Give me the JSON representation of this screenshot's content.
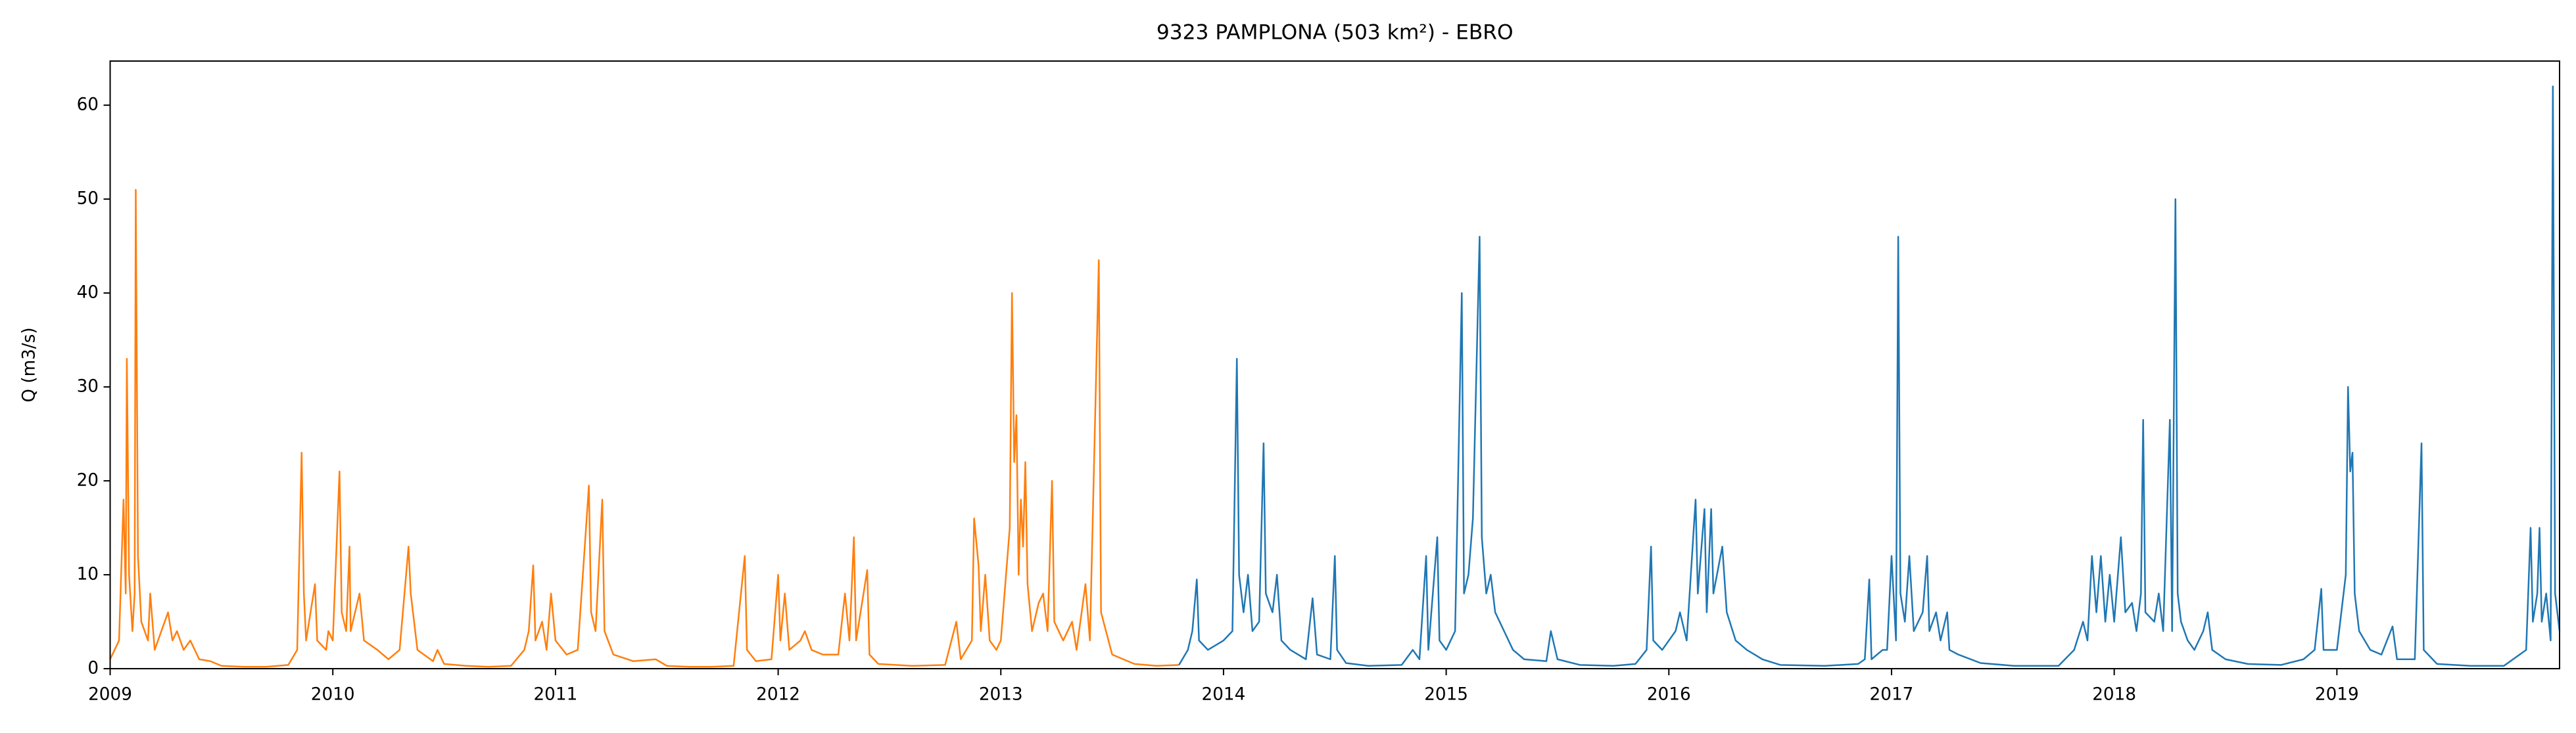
{
  "chart_data": {
    "type": "line",
    "title": "9323 PAMPLONA (503 km²) - EBRO",
    "y_label": "Q (m3/s)",
    "xlim": [
      2009,
      2020
    ],
    "xticks": [
      2009,
      2010,
      2011,
      2012,
      2013,
      2014,
      2015,
      2016,
      2017,
      2018,
      2019
    ],
    "ylim": [
      0,
      64.7
    ],
    "yticks": [
      0,
      10,
      20,
      30,
      40,
      50,
      60
    ],
    "grid": false,
    "series": [
      {
        "color": "#ff7f0e",
        "x": [
          2009.0,
          2009.04,
          2009.06,
          2009.07,
          2009.075,
          2009.085,
          2009.1,
          2009.11,
          2009.115,
          2009.125,
          2009.14,
          2009.17,
          2009.18,
          2009.2,
          2009.26,
          2009.28,
          2009.3,
          2009.33,
          2009.36,
          2009.4,
          2009.45,
          2009.5,
          2009.6,
          2009.7,
          2009.8,
          2009.84,
          2009.86,
          2009.87,
          2009.88,
          2009.92,
          2009.93,
          2009.97,
          2009.98,
          2010.0,
          2010.03,
          2010.04,
          2010.06,
          2010.075,
          2010.08,
          2010.1,
          2010.12,
          2010.14,
          2010.2,
          2010.25,
          2010.3,
          2010.34,
          2010.35,
          2010.38,
          2010.45,
          2010.47,
          2010.5,
          2010.6,
          2010.7,
          2010.8,
          2010.86,
          2010.88,
          2010.9,
          2010.91,
          2010.94,
          2010.96,
          2010.98,
          2011.0,
          2011.05,
          2011.1,
          2011.15,
          2011.16,
          2011.18,
          2011.21,
          2011.22,
          2011.26,
          2011.35,
          2011.45,
          2011.5,
          2011.6,
          2011.7,
          2011.8,
          2011.85,
          2011.86,
          2011.9,
          2011.97,
          2012.0,
          2012.01,
          2012.03,
          2012.05,
          2012.1,
          2012.12,
          2012.15,
          2012.2,
          2012.27,
          2012.3,
          2012.32,
          2012.34,
          2012.35,
          2012.4,
          2012.41,
          2012.45,
          2012.6,
          2012.75,
          2012.8,
          2012.82,
          2012.87,
          2012.88,
          2012.9,
          2012.91,
          2012.93,
          2012.95,
          2012.98,
          2013.0,
          2013.04,
          2013.05,
          2013.06,
          2013.07,
          2013.08,
          2013.09,
          2013.1,
          2013.11,
          2013.12,
          2013.14,
          2013.17,
          2013.19,
          2013.21,
          2013.23,
          2013.24,
          2013.28,
          2013.32,
          2013.34,
          2013.38,
          2013.4,
          2013.44,
          2013.45,
          2013.5,
          2013.6,
          2013.7,
          2013.8
        ],
        "values": [
          1,
          3,
          18,
          8,
          33,
          10,
          4,
          8,
          51,
          12,
          5,
          3,
          8,
          2,
          6,
          3,
          4,
          2,
          3,
          1,
          0.8,
          0.3,
          0.2,
          0.2,
          0.4,
          2,
          23,
          8,
          3,
          9,
          3,
          2,
          4,
          3,
          21,
          6,
          4,
          13,
          4,
          6,
          8,
          3,
          2,
          1,
          2,
          13,
          8,
          2,
          0.8,
          2,
          0.5,
          0.3,
          0.2,
          0.3,
          2,
          4,
          11,
          3,
          5,
          2,
          8,
          3,
          1.5,
          2,
          19.5,
          6,
          4,
          18,
          4,
          1.5,
          0.8,
          1,
          0.3,
          0.2,
          0.2,
          0.3,
          12,
          2,
          0.8,
          1,
          10,
          3,
          8,
          2,
          3,
          4,
          2,
          1.5,
          1.5,
          8,
          3,
          14,
          3,
          10.5,
          1.5,
          0.5,
          0.3,
          0.4,
          5,
          1,
          3,
          16,
          11,
          4,
          10,
          3,
          2,
          3,
          15,
          40,
          22,
          27,
          10,
          18,
          13,
          22,
          9,
          4,
          7,
          8,
          4,
          20,
          5,
          3,
          5,
          2,
          9,
          3,
          43.5,
          6,
          1.5,
          0.5,
          0.3,
          0.4
        ]
      },
      {
        "color": "#1f77b4",
        "x": [
          2013.8,
          2013.84,
          2013.86,
          2013.88,
          2013.89,
          2013.93,
          2014.0,
          2014.04,
          2014.06,
          2014.07,
          2014.09,
          2014.11,
          2014.13,
          2014.16,
          2014.18,
          2014.19,
          2014.22,
          2014.24,
          2014.26,
          2014.3,
          2014.37,
          2014.4,
          2014.42,
          2014.48,
          2014.5,
          2014.51,
          2014.55,
          2014.65,
          2014.8,
          2014.85,
          2014.88,
          2014.91,
          2014.92,
          2014.96,
          2014.97,
          2015.0,
          2015.04,
          2015.07,
          2015.08,
          2015.1,
          2015.12,
          2015.15,
          2015.16,
          2015.18,
          2015.2,
          2015.22,
          2015.26,
          2015.3,
          2015.35,
          2015.45,
          2015.47,
          2015.5,
          2015.6,
          2015.75,
          2015.85,
          2015.9,
          2015.92,
          2015.93,
          2015.97,
          2016.03,
          2016.05,
          2016.08,
          2016.12,
          2016.13,
          2016.16,
          2016.17,
          2016.19,
          2016.2,
          2016.24,
          2016.26,
          2016.3,
          2016.35,
          2016.42,
          2016.5,
          2016.7,
          2016.85,
          2016.88,
          2016.9,
          2016.91,
          2016.96,
          2016.98,
          2017.0,
          2017.02,
          2017.03,
          2017.04,
          2017.06,
          2017.08,
          2017.1,
          2017.14,
          2017.16,
          2017.17,
          2017.2,
          2017.22,
          2017.25,
          2017.26,
          2017.3,
          2017.4,
          2017.55,
          2017.75,
          2017.82,
          2017.86,
          2017.88,
          2017.9,
          2017.92,
          2017.94,
          2017.96,
          2017.98,
          2018.0,
          2018.03,
          2018.05,
          2018.08,
          2018.1,
          2018.12,
          2018.13,
          2018.14,
          2018.18,
          2018.2,
          2018.22,
          2018.25,
          2018.26,
          2018.275,
          2018.285,
          2018.3,
          2018.33,
          2018.36,
          2018.4,
          2018.42,
          2018.44,
          2018.5,
          2018.6,
          2018.75,
          2018.85,
          2018.9,
          2018.93,
          2018.94,
          2019.0,
          2019.04,
          2019.05,
          2019.06,
          2019.07,
          2019.08,
          2019.1,
          2019.15,
          2019.2,
          2019.25,
          2019.27,
          2019.35,
          2019.38,
          2019.39,
          2019.45,
          2019.6,
          2019.75,
          2019.85,
          2019.87,
          2019.88,
          2019.9,
          2019.91,
          2019.92,
          2019.94,
          2019.96,
          2019.97,
          2019.98,
          2019.99,
          2020.0
        ],
        "values": [
          0.4,
          2,
          4,
          9.5,
          3,
          2,
          3,
          4,
          33,
          10,
          6,
          10,
          4,
          5,
          24,
          8,
          6,
          10,
          3,
          2,
          1,
          7.5,
          1.5,
          1,
          12,
          2,
          0.6,
          0.3,
          0.4,
          2,
          1,
          12,
          2,
          14,
          3,
          2,
          4,
          40,
          8,
          10,
          16,
          46,
          14,
          8,
          10,
          6,
          4,
          2,
          1,
          0.8,
          4,
          1,
          0.4,
          0.3,
          0.5,
          2,
          13,
          3,
          2,
          4,
          6,
          3,
          18,
          8,
          17,
          6,
          17,
          8,
          13,
          6,
          3,
          2,
          1,
          0.4,
          0.3,
          0.5,
          1,
          9.5,
          1,
          2,
          2,
          12,
          3,
          46,
          8,
          5,
          12,
          4,
          6,
          12,
          4,
          6,
          3,
          6,
          2,
          1.5,
          0.6,
          0.3,
          0.3,
          2,
          5,
          3,
          12,
          6,
          12,
          5,
          10,
          5,
          14,
          6,
          7,
          4,
          8,
          26.5,
          6,
          5,
          8,
          4,
          26.5,
          4,
          50,
          8,
          5,
          3,
          2,
          4,
          6,
          2,
          1,
          0.5,
          0.4,
          1,
          2,
          8.5,
          2,
          2,
          10,
          30,
          21,
          23,
          8,
          4,
          2,
          1.5,
          4.5,
          1,
          1,
          24,
          2,
          0.5,
          0.3,
          0.3,
          2,
          15,
          5,
          8,
          15,
          5,
          8,
          3,
          62,
          8,
          6,
          4
        ]
      }
    ]
  }
}
